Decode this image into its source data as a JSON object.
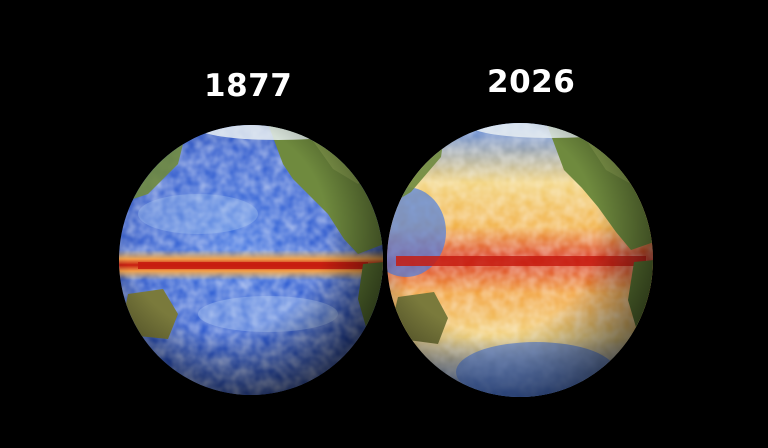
{
  "left": {
    "year": "1877"
  },
  "right": {
    "year": "2026"
  },
  "colors": {
    "background": "#000000",
    "cold_blue": "#1e4fd0",
    "light_blue": "#9ec3f0",
    "warm_yellow": "#f2c25a",
    "hot_orange": "#ef7a22",
    "hot_red": "#c61c10",
    "land_green": "#6f8a3e"
  }
}
